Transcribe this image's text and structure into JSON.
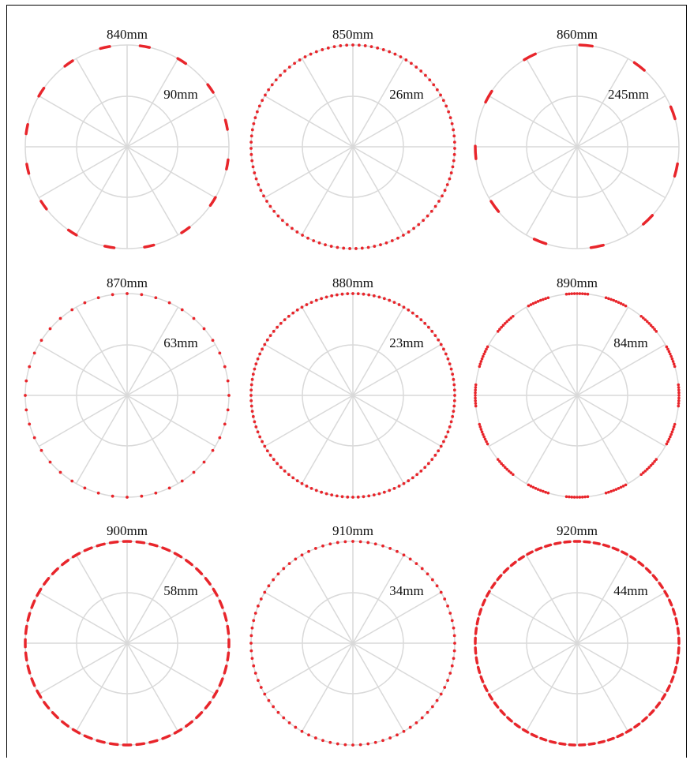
{
  "panels": [
    {
      "title": "840mm",
      "spacing_label": "90mm",
      "spacing_mm": 90,
      "pattern": "dash",
      "dash_count": 16,
      "phase_deg": 10
    },
    {
      "title": "850mm",
      "spacing_label": "26mm",
      "spacing_mm": 26,
      "pattern": "dot",
      "dash_count": 103,
      "phase_deg": 0
    },
    {
      "title": "860mm",
      "spacing_label": "245mm",
      "spacing_mm": 245,
      "pattern": "dash",
      "dash_count": 11,
      "phase_deg": 5
    },
    {
      "title": "870mm",
      "spacing_label": "63mm",
      "spacing_mm": 63,
      "pattern": "dot",
      "dash_count": 44,
      "phase_deg": 0
    },
    {
      "title": "880mm",
      "spacing_label": "23mm",
      "spacing_mm": 23,
      "pattern": "dot",
      "dash_count": 120,
      "phase_deg": 0
    },
    {
      "title": "890mm",
      "spacing_label": "84mm",
      "spacing_mm": 84,
      "pattern": "cluster",
      "dash_count": 16,
      "phase_deg": 0
    },
    {
      "title": "900mm",
      "spacing_label": "58mm",
      "spacing_mm": 58,
      "pattern": "dash",
      "dash_count": 48,
      "phase_deg": 0
    },
    {
      "title": "910mm",
      "spacing_label": "34mm",
      "spacing_mm": 34,
      "pattern": "dot",
      "dash_count": 84,
      "phase_deg": 0
    },
    {
      "title": "920mm",
      "spacing_label": "44mm",
      "spacing_mm": 44,
      "pattern": "dash",
      "dash_count": 65,
      "phase_deg": 0
    }
  ],
  "colors": {
    "marks": "#e8252b",
    "grid": "#d9d9d9",
    "frame": "#000000",
    "text": "#111111"
  },
  "grid": {
    "radial_spokes": 12,
    "inner_ring": true
  }
}
